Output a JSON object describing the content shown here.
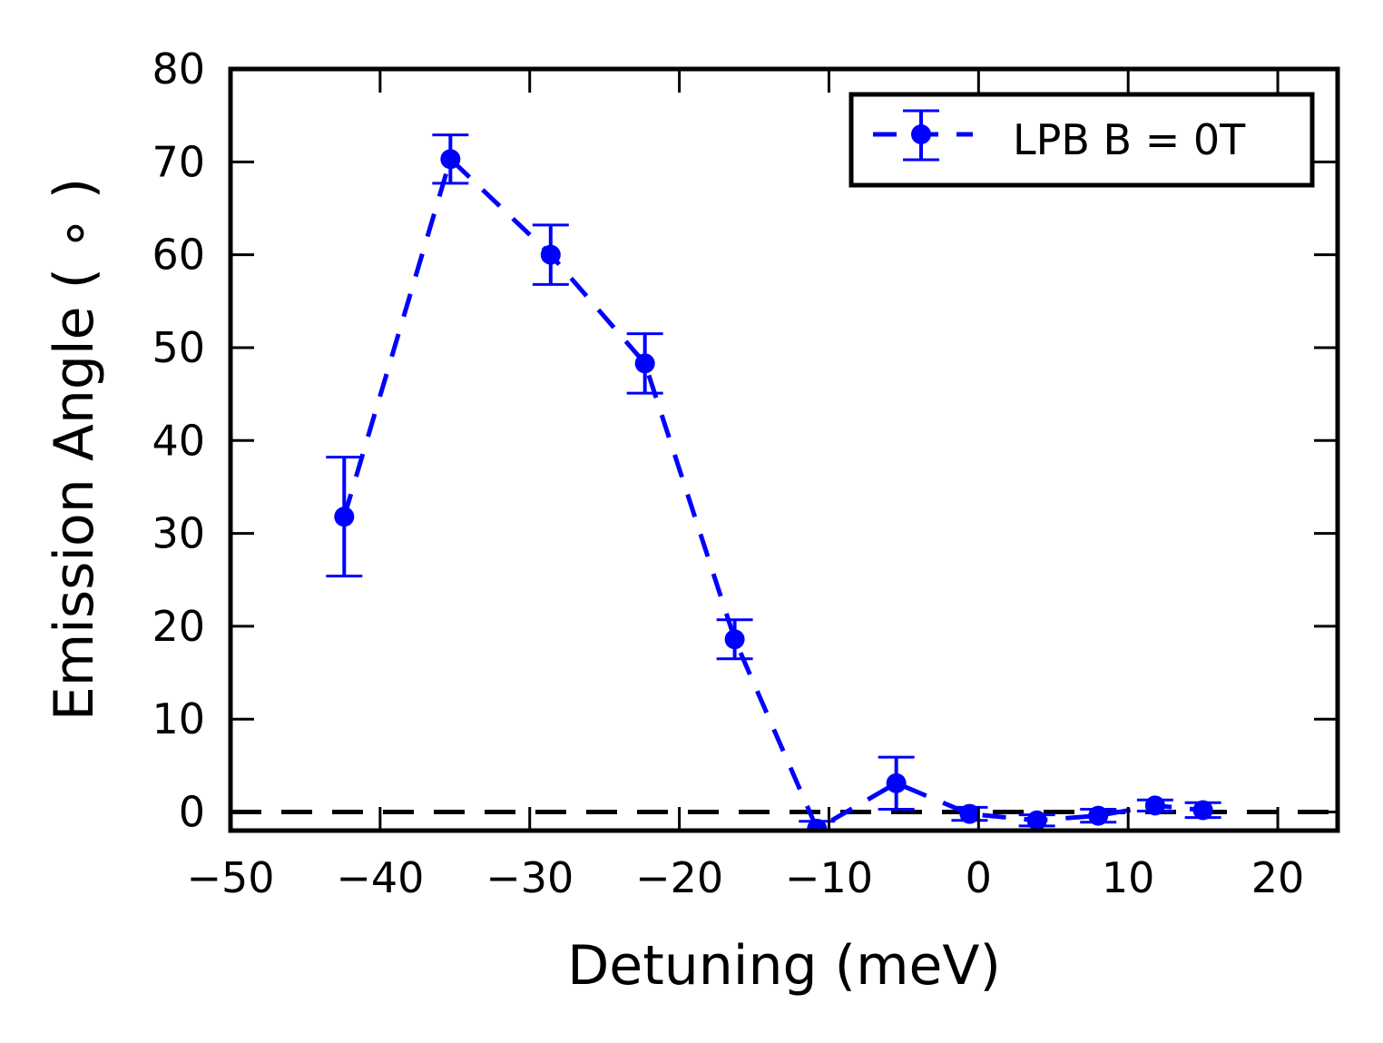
{
  "chart_data": {
    "type": "scatter",
    "xlabel": "Detuning (meV)",
    "ylabel": "Emission Angle ( ∘ )",
    "xlim": [
      -50,
      24
    ],
    "ylim": [
      -2,
      80
    ],
    "xticks": [
      -50,
      -40,
      -30,
      -20,
      -10,
      0,
      10,
      20
    ],
    "yticks": [
      0,
      10,
      20,
      30,
      40,
      50,
      60,
      70,
      80
    ],
    "xtick_labels": [
      "−50",
      "−40",
      "−30",
      "−20",
      "−10",
      "0",
      "10",
      "20"
    ],
    "ytick_labels": [
      "0",
      "10",
      "20",
      "30",
      "40",
      "50",
      "60",
      "70",
      "80"
    ],
    "grid": false,
    "legend_position": "top-right",
    "reference_line": {
      "y": 0,
      "style": "dashed",
      "color": "#000000"
    },
    "series": [
      {
        "name": "LPB B = 0T",
        "color": "#0000ff",
        "line_style": "dashed",
        "marker": "circle",
        "points": [
          {
            "x": -42.4,
            "y": 31.8,
            "err": 6.4
          },
          {
            "x": -35.3,
            "y": 70.3,
            "err": 2.6
          },
          {
            "x": -28.6,
            "y": 60.0,
            "err": 3.2
          },
          {
            "x": -22.3,
            "y": 48.3,
            "err": 3.2
          },
          {
            "x": -16.3,
            "y": 18.6,
            "err": 2.1
          },
          {
            "x": -10.8,
            "y": -1.8,
            "err": 0.8
          },
          {
            "x": -5.5,
            "y": 3.1,
            "err": 2.8
          },
          {
            "x": -0.6,
            "y": -0.2,
            "err": 0.7
          },
          {
            "x": 3.9,
            "y": -0.9,
            "err": 0.6
          },
          {
            "x": 8.0,
            "y": -0.4,
            "err": 0.7
          },
          {
            "x": 11.8,
            "y": 0.7,
            "err": 0.6
          },
          {
            "x": 15.0,
            "y": 0.2,
            "err": 0.8
          }
        ]
      }
    ]
  }
}
